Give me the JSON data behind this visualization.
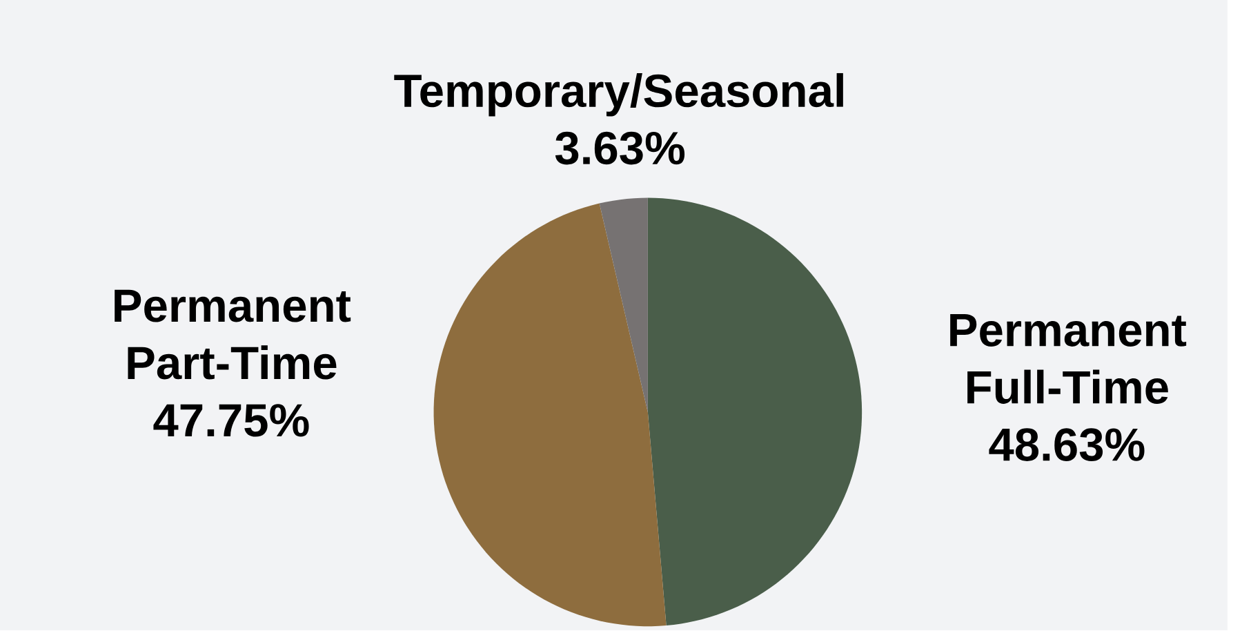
{
  "chart_data": {
    "type": "pie",
    "categories": [
      "Permanent Full-Time",
      "Permanent Part-Time",
      "Temporary/Seasonal"
    ],
    "values": [
      48.63,
      47.75,
      3.63
    ],
    "colors": [
      "#4a5e4a",
      "#8e6d3e",
      "#767272"
    ],
    "value_labels": [
      "48.63%",
      "47.75%",
      "3.63%"
    ]
  }
}
